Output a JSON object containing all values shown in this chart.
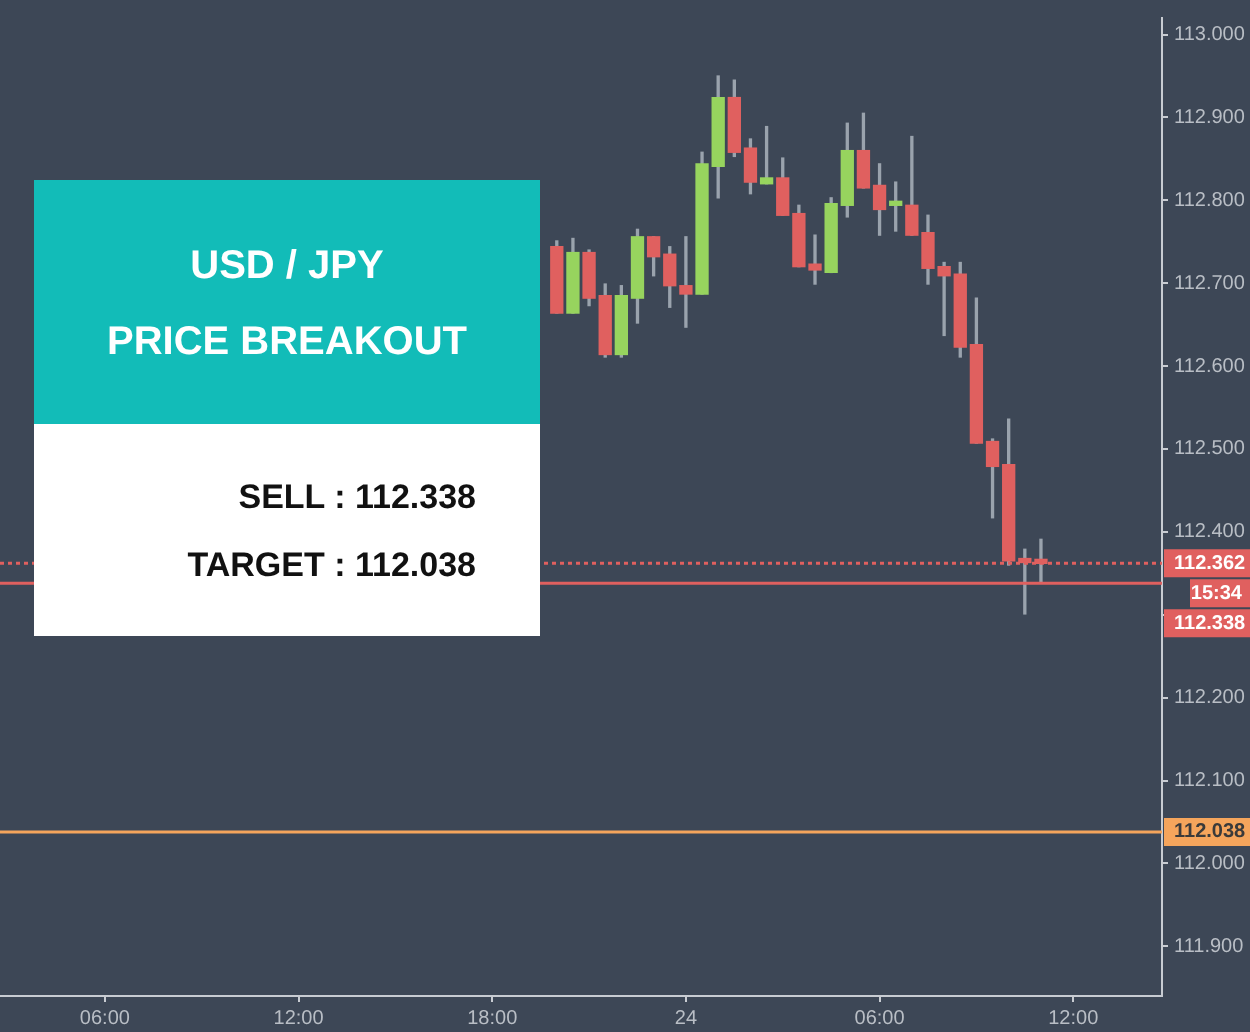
{
  "chart_data": {
    "type": "candlestick",
    "title": "USD / JPY",
    "subtitle": "PRICE BREAKOUT",
    "annotations": [
      "SELL : 112.338",
      "TARGET : 112.038",
      "15:34"
    ],
    "categories": [
      null,
      null,
      null,
      null,
      null,
      null,
      "06:00",
      null,
      null,
      null,
      null,
      null,
      null,
      null,
      null,
      null,
      null,
      null,
      "12:00",
      null,
      null,
      null,
      null,
      null,
      null,
      null,
      null,
      null,
      null,
      null,
      "18:00",
      null,
      null,
      null,
      null,
      null,
      null,
      null,
      null,
      null,
      null,
      null,
      "24",
      null,
      null,
      null,
      null,
      null,
      null,
      null,
      null,
      null,
      null,
      null,
      "06:00",
      null,
      null,
      null,
      null,
      null,
      null,
      null,
      null,
      null,
      null,
      null,
      "12:00",
      null,
      null,
      null,
      null,
      null
    ],
    "ohlc": [
      null,
      null,
      null,
      null,
      null,
      null,
      null,
      null,
      null,
      null,
      null,
      null,
      null,
      null,
      null,
      null,
      null,
      null,
      null,
      null,
      null,
      null,
      null,
      null,
      null,
      null,
      null,
      null,
      null,
      null,
      null,
      null,
      null,
      null,
      [
        112.744,
        112.751,
        112.664,
        112.664
      ],
      [
        112.664,
        112.754,
        112.664,
        112.737
      ],
      [
        112.737,
        112.74,
        112.673,
        112.682
      ],
      [
        112.685,
        112.699,
        112.611,
        112.614
      ],
      [
        112.614,
        112.697,
        112.611,
        112.685
      ],
      [
        112.682,
        112.765,
        112.652,
        112.756
      ],
      [
        112.756,
        112.756,
        112.709,
        112.732
      ],
      [
        112.735,
        112.744,
        112.671,
        112.697
      ],
      [
        112.697,
        112.756,
        112.647,
        112.687
      ],
      [
        112.687,
        112.858,
        112.687,
        112.844
      ],
      [
        112.841,
        112.95,
        112.803,
        112.924
      ],
      [
        112.924,
        112.945,
        112.853,
        112.858
      ],
      [
        112.863,
        112.874,
        112.808,
        112.822
      ],
      [
        112.82,
        112.889,
        112.82,
        112.827
      ],
      [
        112.827,
        112.851,
        112.782,
        112.782
      ],
      [
        112.784,
        112.794,
        112.72,
        112.72
      ],
      [
        112.723,
        112.758,
        112.699,
        112.716
      ],
      [
        112.713,
        112.803,
        112.713,
        112.796
      ],
      [
        112.794,
        112.893,
        112.78,
        112.86
      ],
      [
        112.86,
        112.905,
        112.815,
        112.815
      ],
      [
        112.818,
        112.844,
        112.758,
        112.789
      ],
      [
        112.794,
        112.822,
        112.763,
        112.797
      ],
      [
        112.794,
        112.877,
        112.758,
        112.758
      ],
      [
        112.761,
        112.782,
        112.699,
        112.718
      ],
      [
        112.72,
        112.725,
        112.637,
        112.709
      ],
      [
        112.711,
        112.725,
        112.611,
        112.623
      ],
      [
        112.626,
        112.682,
        112.507,
        112.507
      ],
      [
        112.509,
        112.512,
        112.417,
        112.479
      ],
      [
        112.481,
        112.536,
        112.36,
        112.365
      ],
      [
        112.367,
        112.379,
        112.301,
        112.363
      ],
      [
        112.364,
        112.391,
        112.339,
        112.362
      ],
      null,
      null,
      null,
      null,
      null,
      null,
      null
    ],
    "ylim": [
      111.84,
      113.02
    ],
    "yticks": [
      {
        "value": 111.9,
        "label": "111.900"
      },
      {
        "value": 112,
        "label": "112.000"
      },
      {
        "value": 112.1,
        "label": "112.100"
      },
      {
        "value": 112.2,
        "label": "112.200"
      },
      {
        "value": 112.3,
        "label": null
      },
      {
        "value": 112.4,
        "label": "112.400"
      },
      {
        "value": 112.5,
        "label": "112.500"
      },
      {
        "value": 112.6,
        "label": "112.600"
      },
      {
        "value": 112.7,
        "label": "112.700"
      },
      {
        "value": 112.8,
        "label": "112.800"
      },
      {
        "value": 112.9,
        "label": "112.900"
      },
      {
        "value": 113,
        "label": "113.000"
      }
    ],
    "ref_lines": [
      {
        "axis": "y",
        "value": 112.362,
        "label": "112.362",
        "color": "#e0605f",
        "line_style": "dotted"
      },
      {
        "axis": "y",
        "value": 112.338,
        "label": "112.338",
        "color": "#e0605f",
        "line_style": "solid"
      },
      {
        "axis": "y",
        "value": 112.038,
        "label": "112.038",
        "color": "#f5a55c",
        "line_style": "solid"
      }
    ]
  }
}
